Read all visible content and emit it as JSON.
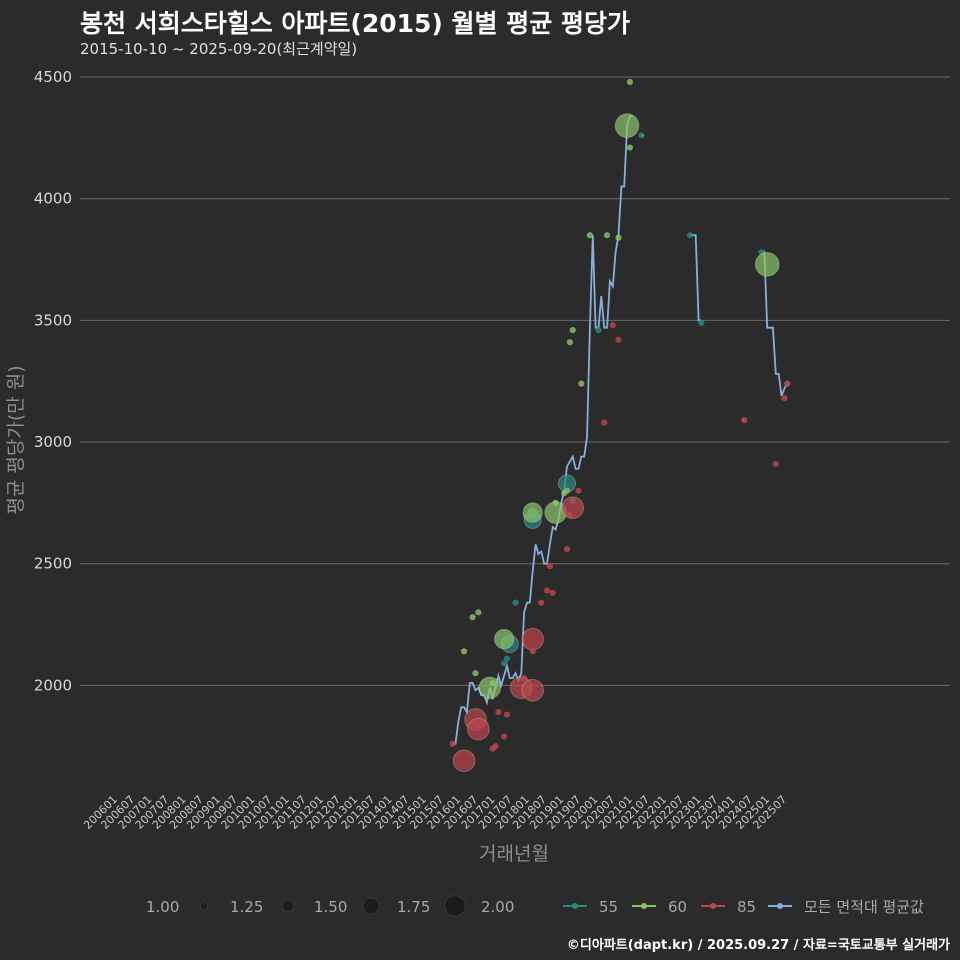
{
  "title": "봉천 서희스타힐스 아파트(2015) 월별 평균 평당가",
  "subtitle": "2015-10-10 ~ 2025-09-20(최근계약일)",
  "credit": "©디아파트(dapt.kr) / 2025.09.27 / 자료=국토교통부 실거래가",
  "colors": {
    "background": "#2b2b2b",
    "grid": "#6a6a6a",
    "s55": "#2a8a80",
    "s60": "#8cc46a",
    "s85": "#c0464e",
    "avg": "#8aaed8"
  },
  "chart_data": {
    "type": "line",
    "xlabel": "거래년월",
    "ylabel": "평균 평당가(만 원)",
    "ylim": [
      1570,
      4570
    ],
    "y_ticks": [
      2000,
      2500,
      3000,
      3500,
      4000,
      4500
    ],
    "x_ticks": [
      "200601",
      "200607",
      "200701",
      "200707",
      "200801",
      "200807",
      "200901",
      "200907",
      "201001",
      "201007",
      "201101",
      "201107",
      "201201",
      "201207",
      "201301",
      "201307",
      "201401",
      "201407",
      "201501",
      "201507",
      "201601",
      "201607",
      "201701",
      "201707",
      "201801",
      "201807",
      "201901",
      "201907",
      "202001",
      "202007",
      "202101",
      "202107",
      "202201",
      "202207",
      "202301",
      "202307",
      "202401",
      "202407",
      "202501",
      "202507"
    ],
    "size_legend": {
      "title": "",
      "values": [
        1.0,
        1.25,
        1.5,
        1.75,
        2.0
      ],
      "labels": [
        "1.00",
        "1.25",
        "1.50",
        "1.75",
        "2.00"
      ]
    },
    "color_legend": [
      {
        "key": "s55",
        "label": "55"
      },
      {
        "key": "s60",
        "label": "60"
      },
      {
        "key": "s85",
        "label": "85"
      },
      {
        "key": "avg",
        "label": "모든 면적대 평균값"
      }
    ],
    "series": [
      {
        "key": "avg",
        "type": "line",
        "points": [
          [
            "2015-10",
            1760
          ],
          [
            "2015-11",
            1760
          ],
          [
            "2015-12",
            1850
          ],
          [
            "2016-01",
            1910
          ],
          [
            "2016-02",
            1910
          ],
          [
            "2016-03",
            1890
          ],
          [
            "2016-04",
            2010
          ],
          [
            "2016-05",
            2010
          ],
          [
            "2016-06",
            1980
          ],
          [
            "2016-07",
            1990
          ],
          [
            "2016-08",
            1960
          ],
          [
            "2016-09",
            1960
          ],
          [
            "2016-10",
            1930
          ],
          [
            "2016-11",
            1990
          ],
          [
            "2016-12",
            1950
          ],
          [
            "2017-01",
            1990
          ],
          [
            "2017-02",
            2040
          ],
          [
            "2017-03",
            2000
          ],
          [
            "2017-04",
            2040
          ],
          [
            "2017-05",
            2080
          ],
          [
            "2017-06",
            2030
          ],
          [
            "2017-07",
            2030
          ],
          [
            "2017-08",
            2050
          ],
          [
            "2017-09",
            2020
          ],
          [
            "2017-10",
            2050
          ],
          [
            "2017-11",
            2300
          ],
          [
            "2017-12",
            2340
          ],
          [
            "2018-01",
            2340
          ],
          [
            "2018-02",
            2470
          ],
          [
            "2018-03",
            2580
          ],
          [
            "2018-04",
            2540
          ],
          [
            "2018-05",
            2550
          ],
          [
            "2018-06",
            2500
          ],
          [
            "2018-07",
            2500
          ],
          [
            "2018-08",
            2580
          ],
          [
            "2018-09",
            2650
          ],
          [
            "2018-10",
            2640
          ],
          [
            "2018-11",
            2680
          ],
          [
            "2018-12",
            2750
          ],
          [
            "2019-01",
            2800
          ],
          [
            "2019-02",
            2900
          ],
          [
            "2019-03",
            2920
          ],
          [
            "2019-04",
            2940
          ],
          [
            "2019-05",
            2890
          ],
          [
            "2019-06",
            2890
          ],
          [
            "2019-07",
            2940
          ],
          [
            "2019-08",
            2940
          ],
          [
            "2019-09",
            3020
          ],
          [
            "2019-10",
            3470
          ],
          [
            "2019-11",
            3850
          ],
          [
            "2019-12",
            3470
          ],
          [
            "2020-01",
            3470
          ],
          [
            "2020-02",
            3600
          ],
          [
            "2020-03",
            3470
          ],
          [
            "2020-04",
            3470
          ],
          [
            "2020-05",
            3660
          ],
          [
            "2020-06",
            3640
          ],
          [
            "2020-07",
            3780
          ],
          [
            "2020-08",
            3850
          ],
          [
            "2020-09",
            4050
          ],
          [
            "2020-10",
            4050
          ],
          [
            "2020-11",
            4300
          ],
          [
            "2020-12",
            4340
          ],
          [
            "2021-01",
            4340
          ],
          [
            null,
            null
          ],
          [
            "2021-04",
            4260
          ],
          [
            "2021-05",
            4260
          ],
          [
            null,
            null
          ],
          [
            "2022-09",
            3850
          ],
          [
            "2022-10",
            3850
          ],
          [
            "2022-11",
            3850
          ],
          [
            "2022-12",
            3500
          ],
          [
            "2023-01",
            3500
          ],
          [
            null,
            null
          ],
          [
            "2024-03",
            3090
          ],
          [
            "2024-04",
            3090
          ],
          [
            null,
            null
          ],
          [
            "2024-10",
            3770
          ],
          [
            "2024-11",
            3780
          ],
          [
            "2024-12",
            3470
          ],
          [
            "2025-01",
            3470
          ],
          [
            "2025-02",
            3470
          ],
          [
            "2025-03",
            3280
          ],
          [
            "2025-04",
            3280
          ],
          [
            "2025-05",
            3190
          ],
          [
            "2025-06",
            3220
          ],
          [
            "2025-07",
            3240
          ]
        ]
      },
      {
        "key": "s55",
        "type": "scatter",
        "points": [
          [
            "2017-04",
            2090,
            1.1
          ],
          [
            "2017-05",
            2110,
            1.1
          ],
          [
            "2017-06",
            2170,
            1.6
          ],
          [
            "2017-08",
            2340,
            1.1
          ],
          [
            "2018-02",
            2680,
            1.6
          ],
          [
            "2018-02",
            2710,
            1.2
          ],
          [
            "2019-02",
            2830,
            1.6
          ],
          [
            "2019-04",
            2760,
            1.1
          ],
          [
            "2020-01",
            3460,
            1.1
          ],
          [
            "2021-04",
            4260,
            1.1
          ],
          [
            "2022-09",
            3850,
            1.1
          ],
          [
            "2023-01",
            3490,
            1.1
          ],
          [
            "2024-10",
            3780,
            1.1
          ],
          [
            "2025-07",
            3240,
            1.1
          ]
        ]
      },
      {
        "key": "s60",
        "type": "scatter",
        "points": [
          [
            "2016-02",
            2140,
            1.1
          ],
          [
            "2016-05",
            2280,
            1.1
          ],
          [
            "2016-06",
            2050,
            1.1
          ],
          [
            "2016-07",
            2300,
            1.1
          ],
          [
            "2016-11",
            1990,
            1.8
          ],
          [
            "2016-12",
            2010,
            1.1
          ],
          [
            "2017-04",
            2190,
            1.7
          ],
          [
            "2018-02",
            2710,
            1.7
          ],
          [
            "2018-10",
            2750,
            1.1
          ],
          [
            "2018-10",
            2710,
            1.8
          ],
          [
            "2019-01",
            2790,
            1.1
          ],
          [
            "2019-02",
            2800,
            1.1
          ],
          [
            "2019-03",
            3410,
            1.1
          ],
          [
            "2019-04",
            3460,
            1.1
          ],
          [
            "2019-07",
            3240,
            1.1
          ],
          [
            "2019-10",
            3850,
            1.1
          ],
          [
            "2020-04",
            3850,
            1.1
          ],
          [
            "2020-08",
            3840,
            1.1
          ],
          [
            "2020-11",
            4300,
            1.9
          ],
          [
            "2020-12",
            4480,
            1.1
          ],
          [
            "2020-12",
            4210,
            1.1
          ],
          [
            "2024-12",
            3730,
            1.9
          ]
        ]
      },
      {
        "key": "s85",
        "type": "scatter",
        "points": [
          [
            "2015-10",
            1760,
            1.1
          ],
          [
            "2016-02",
            1690,
            1.8
          ],
          [
            "2016-06",
            1860,
            1.8
          ],
          [
            "2016-07",
            1820,
            1.8
          ],
          [
            "2016-12",
            1740,
            1.1
          ],
          [
            "2017-01",
            1750,
            1.1
          ],
          [
            "2017-02",
            1890,
            1.1
          ],
          [
            "2017-04",
            1790,
            1.1
          ],
          [
            "2017-05",
            1880,
            1.1
          ],
          [
            "2017-10",
            1990,
            1.8
          ],
          [
            "2017-11",
            2030,
            1.1
          ],
          [
            "2018-02",
            1980,
            1.8
          ],
          [
            "2018-02",
            2190,
            1.8
          ],
          [
            "2018-02",
            2140,
            1.1
          ],
          [
            "2018-05",
            2340,
            1.1
          ],
          [
            "2018-07",
            2390,
            1.1
          ],
          [
            "2018-08",
            2490,
            1.1
          ],
          [
            "2018-09",
            2380,
            1.1
          ],
          [
            "2019-02",
            2560,
            1.1
          ],
          [
            "2019-03",
            2700,
            1.1
          ],
          [
            "2019-04",
            2730,
            1.8
          ],
          [
            "2019-06",
            2800,
            1.1
          ],
          [
            "2020-03",
            3080,
            1.1
          ],
          [
            "2020-06",
            3480,
            1.1
          ],
          [
            "2020-08",
            3420,
            1.1
          ],
          [
            "2024-04",
            3090,
            1.1
          ],
          [
            "2025-03",
            2910,
            1.1
          ],
          [
            "2025-06",
            3180,
            1.1
          ],
          [
            "2025-07",
            3240,
            1.1
          ]
        ]
      }
    ]
  }
}
